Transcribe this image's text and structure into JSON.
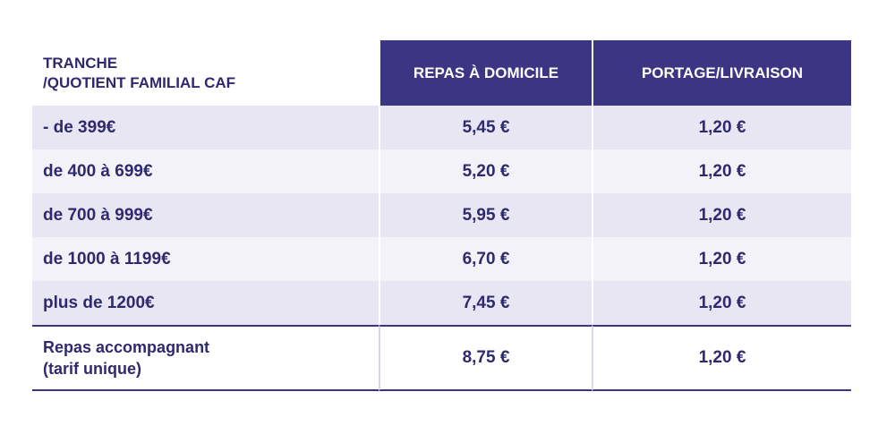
{
  "table": {
    "header": [
      [
        "TRANCHE",
        "/QUOTIENT FAMILIAL CAF"
      ],
      "REPAS À DOMICILE",
      "PORTAGE/LIVRAISON"
    ],
    "rows": [
      [
        "- de 399€",
        "5,45 €",
        "1,20 €"
      ],
      [
        "de 400 à 699€",
        "5,20 €",
        "1,20 €"
      ],
      [
        "de 700 à 999€",
        "5,95 €",
        "1,20 €"
      ],
      [
        "de 1000 à 1199€",
        "6,70 €",
        "1,20 €"
      ],
      [
        "plus de 1200€",
        "7,45 €",
        "1,20 €"
      ],
      [
        [
          "Repas accompagnant",
          "(tarif unique)"
        ],
        "8,75 €",
        "1,20 €"
      ]
    ]
  }
}
